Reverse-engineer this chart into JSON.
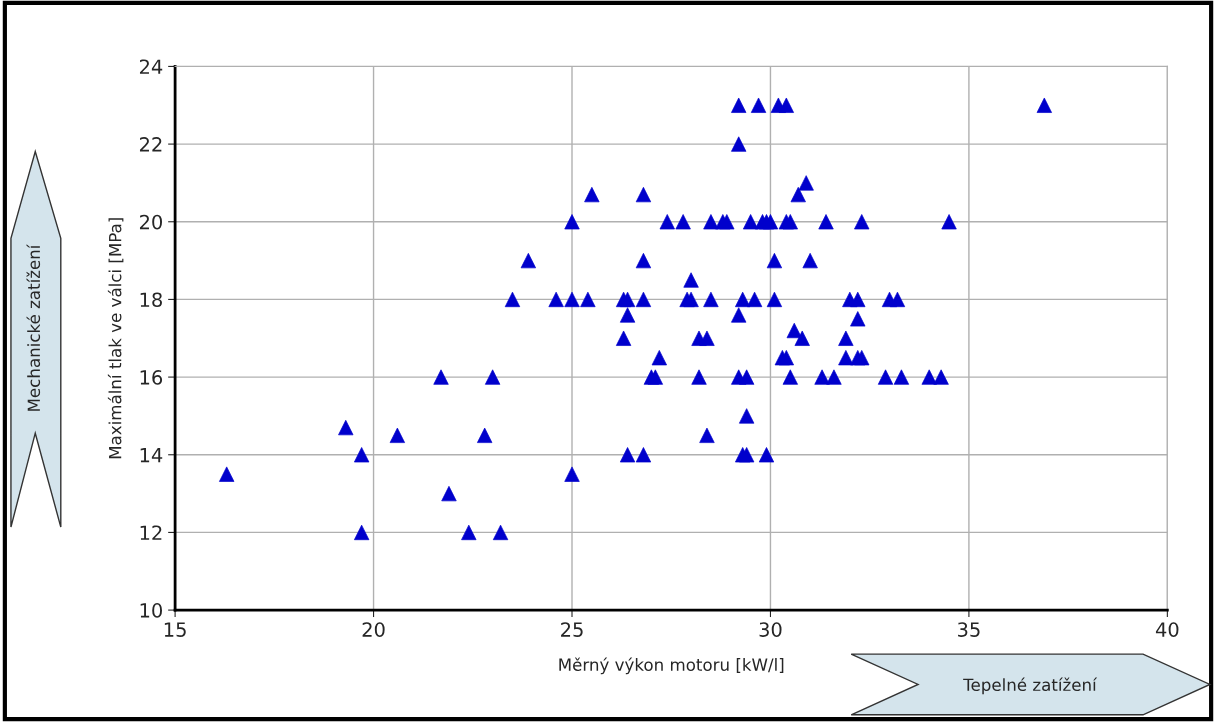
{
  "chart_data": {
    "type": "scatter",
    "xlabel": "Měrný výkon motoru [kW/l]",
    "ylabel": "Maximální tlak ve válci [MPa]",
    "annotations": [
      "Mechanické zatížení",
      "Tepelné zatížení"
    ],
    "xlim": [
      15,
      40
    ],
    "xticks": [
      15,
      20,
      25,
      30,
      35,
      40
    ],
    "ylim": [
      10,
      24
    ],
    "yticks": [
      10,
      12,
      14,
      16,
      18,
      20,
      22,
      24
    ],
    "grid": true,
    "marker": "triangle",
    "series": [
      {
        "color": "#0000cc",
        "x": [
          16.3,
          19.3,
          19.7,
          19.7,
          20.6,
          21.7,
          21.9,
          22.4,
          22.8,
          23.0,
          23.2,
          23.5,
          23.9,
          24.6,
          25.0,
          25.0,
          25.0,
          25.4,
          25.5,
          26.3,
          26.4,
          26.4,
          26.3,
          26.4,
          26.8,
          26.8,
          26.8,
          26.8,
          27.0,
          27.1,
          27.2,
          27.4,
          27.8,
          27.9,
          28.0,
          28.0,
          28.2,
          28.2,
          28.4,
          28.4,
          28.5,
          28.5,
          28.8,
          28.9,
          29.2,
          29.2,
          29.2,
          29.2,
          29.3,
          29.3,
          29.4,
          29.4,
          29.4,
          29.5,
          29.6,
          29.7,
          29.8,
          29.9,
          29.9,
          30.0,
          30.1,
          30.1,
          30.2,
          30.4,
          30.3,
          30.4,
          30.4,
          30.5,
          30.5,
          30.6,
          30.7,
          30.8,
          30.9,
          31.0,
          31.3,
          31.4,
          31.6,
          31.9,
          31.9,
          32.0,
          32.2,
          32.2,
          32.2,
          32.3,
          32.3,
          32.9,
          33.0,
          33.2,
          33.3,
          34.0,
          34.3,
          34.5,
          36.9
        ],
        "values": [
          13.5,
          14.7,
          14.0,
          12.0,
          14.5,
          16.0,
          13.0,
          12.0,
          14.5,
          16.0,
          12.0,
          18.0,
          19.0,
          18.0,
          20.0,
          18.0,
          13.5,
          18.0,
          20.7,
          18.0,
          18.0,
          17.6,
          17.0,
          14.0,
          20.7,
          19.0,
          18.0,
          14.0,
          16.0,
          16.0,
          16.5,
          20.0,
          20.0,
          18.0,
          18.0,
          18.5,
          17.0,
          16.0,
          17.0,
          14.5,
          18.0,
          20.0,
          20.0,
          20.0,
          22.0,
          23.0,
          17.6,
          16.0,
          18.0,
          14.0,
          14.0,
          16.0,
          15.0,
          20.0,
          18.0,
          23.0,
          20.0,
          20.0,
          14.0,
          20.0,
          18.0,
          19.0,
          23.0,
          23.0,
          16.5,
          16.5,
          20.0,
          20.0,
          16.0,
          17.2,
          20.7,
          17.0,
          21.0,
          19.0,
          16.0,
          20.0,
          16.0,
          17.0,
          16.5,
          18.0,
          18.0,
          17.5,
          16.5,
          16.5,
          20.0,
          16.0,
          18.0,
          18.0,
          16.0,
          16.0,
          16.0,
          20.0,
          23.0
        ]
      }
    ]
  }
}
